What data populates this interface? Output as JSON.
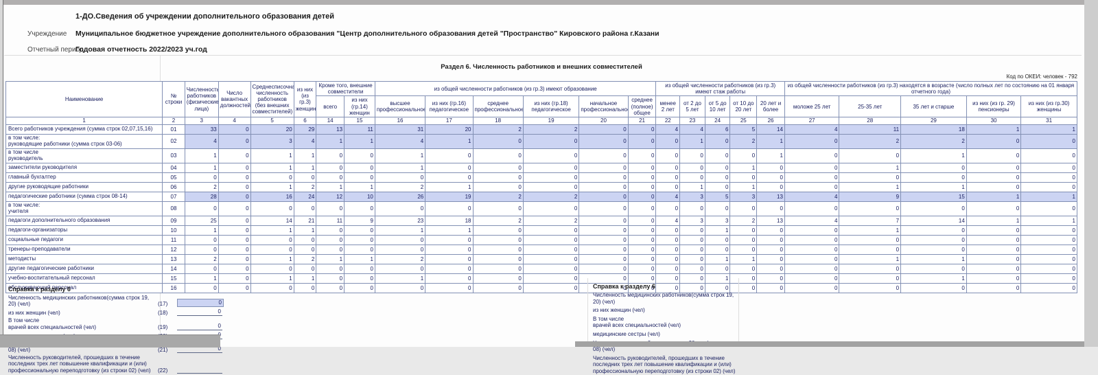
{
  "header": {
    "form_title": "1-ДО.Сведения об учреждении дополнительного образования детей",
    "fields": [
      {
        "label": "Учреждение",
        "value": "Муниципальное бюджетное учреждение дополнительного образования \"Центр дополнительного образования детей \"Пространство\" Кировского района г.Казани"
      },
      {
        "label": "Отчетный период",
        "value": "Годовая отчетность 2022/2023 уч.год"
      }
    ]
  },
  "section": {
    "title": "Раздел 6. Численность работников и внешних совместителей",
    "okei": "Код по ОКЕИ: человек - 792"
  },
  "colors": {
    "row_highlight": "#ccd4f3",
    "table_border": "#8290b4",
    "table_text": "#1b2161"
  },
  "table": {
    "tier1": [
      {
        "label": "Наименование",
        "rowspan": 2
      },
      {
        "label": "№\nстроки",
        "rowspan": 2
      },
      {
        "label": "Численность работников (физические лица)",
        "rowspan": 2
      },
      {
        "label": "Число вакантных должностей",
        "rowspan": 2
      },
      {
        "label": "Среднесписочная численность работников (без внешних совместителей)",
        "rowspan": 2
      },
      {
        "label": "из них (из гр.3) женщины",
        "rowspan": 2
      },
      {
        "label": "Кроме того, внешние совместители",
        "colspan": 2
      },
      {
        "label": "из общей численности работников (из гр.3) имеют образование",
        "colspan": 6
      },
      {
        "label": "из общей численности работников (из гр.3) имеют стаж работы",
        "colspan": 5
      },
      {
        "label": "из общей численности работников (из гр.3) находятся в возрасте (число полных лет по состоянию на 01 января отчетного года)",
        "colspan": 5
      }
    ],
    "tier2": [
      "всего",
      "из них (гр.14) женщин",
      "высшее профессиональное",
      "из них (гр.16) педагогическое",
      "среднее профессиональное",
      "из них (гр.18) педагогическое",
      "начальное профессиональное",
      "среднее (полное) общее",
      "менее 2 лет",
      "от 2 до 5 лет",
      "от 5 до 10 лет",
      "от 10 до 20 лет",
      "20 лет и более",
      "моложе 25 лет",
      "25-35 лет",
      "35 лет и старше",
      "из них (из гр. 29) пенсионеры",
      "из них (из гр.30) женщины"
    ],
    "col_numbers": [
      "1",
      "2",
      "3",
      "4",
      "5",
      "6",
      "14",
      "15",
      "16",
      "17",
      "18",
      "19",
      "20",
      "21",
      "22",
      "23",
      "24",
      "25",
      "26",
      "27",
      "28",
      "29",
      "30",
      "31"
    ],
    "rows": [
      {
        "name": "Всего работников учреждения (сумма строк 02,07,15,16)",
        "code": "01",
        "highlight": true,
        "values": [
          33,
          0,
          20,
          29,
          13,
          11,
          31,
          20,
          2,
          2,
          0,
          0,
          4,
          4,
          6,
          5,
          14,
          4,
          11,
          18,
          1,
          1
        ]
      },
      {
        "name": "в том числе:\nруководящие работники (сумма строк 03-06)",
        "code": "02",
        "highlight": true,
        "values": [
          4,
          0,
          3,
          4,
          1,
          1,
          4,
          1,
          0,
          0,
          0,
          0,
          0,
          1,
          0,
          2,
          1,
          0,
          2,
          2,
          0,
          0
        ]
      },
      {
        "name": "в том числе\nруководитель",
        "code": "03",
        "highlight": false,
        "values": [
          1,
          0,
          1,
          1,
          0,
          0,
          1,
          0,
          0,
          0,
          0,
          0,
          0,
          0,
          0,
          0,
          1,
          0,
          0,
          1,
          0,
          0
        ]
      },
      {
        "name": "заместители руководителя",
        "code": "04",
        "highlight": false,
        "values": [
          1,
          0,
          1,
          1,
          0,
          0,
          1,
          0,
          0,
          0,
          0,
          0,
          0,
          0,
          0,
          1,
          0,
          0,
          1,
          0,
          0,
          0
        ]
      },
      {
        "name": "главный бухгалтер",
        "code": "05",
        "highlight": false,
        "values": [
          0,
          0,
          0,
          0,
          0,
          0,
          0,
          0,
          0,
          0,
          0,
          0,
          0,
          0,
          0,
          0,
          0,
          0,
          0,
          0,
          0,
          0
        ]
      },
      {
        "name": "другие руководящие работники",
        "code": "06",
        "highlight": false,
        "values": [
          2,
          0,
          1,
          2,
          1,
          1,
          2,
          1,
          0,
          0,
          0,
          0,
          0,
          1,
          0,
          1,
          0,
          0,
          1,
          1,
          0,
          0
        ]
      },
      {
        "name": "педагогические работники (сумма строк 08-14)",
        "code": "07",
        "highlight": true,
        "values": [
          28,
          0,
          16,
          24,
          12,
          10,
          26,
          19,
          2,
          2,
          0,
          0,
          4,
          3,
          5,
          3,
          13,
          4,
          9,
          15,
          1,
          1
        ]
      },
      {
        "name": "в том числе:\nучителя",
        "code": "08",
        "highlight": false,
        "values": [
          0,
          0,
          0,
          0,
          0,
          0,
          0,
          0,
          0,
          0,
          0,
          0,
          0,
          0,
          0,
          0,
          0,
          0,
          0,
          0,
          0,
          0
        ]
      },
      {
        "name": "педагоги дополнительного образования",
        "code": "09",
        "highlight": false,
        "values": [
          25,
          0,
          14,
          21,
          11,
          9,
          23,
          18,
          2,
          2,
          0,
          0,
          4,
          3,
          3,
          2,
          13,
          4,
          7,
          14,
          1,
          1
        ]
      },
      {
        "name": "педагоги-организаторы",
        "code": "10",
        "highlight": false,
        "values": [
          1,
          0,
          1,
          1,
          0,
          0,
          1,
          1,
          0,
          0,
          0,
          0,
          0,
          0,
          1,
          0,
          0,
          0,
          1,
          0,
          0,
          0
        ]
      },
      {
        "name": "социальные педагоги",
        "code": "11",
        "highlight": false,
        "values": [
          0,
          0,
          0,
          0,
          0,
          0,
          0,
          0,
          0,
          0,
          0,
          0,
          0,
          0,
          0,
          0,
          0,
          0,
          0,
          0,
          0,
          0
        ]
      },
      {
        "name": "тренеры-преподаватели",
        "code": "12",
        "highlight": false,
        "values": [
          0,
          0,
          0,
          0,
          0,
          0,
          0,
          0,
          0,
          0,
          0,
          0,
          0,
          0,
          0,
          0,
          0,
          0,
          0,
          0,
          0,
          0
        ]
      },
      {
        "name": "методисты",
        "code": "13",
        "highlight": false,
        "values": [
          2,
          0,
          1,
          2,
          1,
          1,
          2,
          0,
          0,
          0,
          0,
          0,
          0,
          0,
          1,
          1,
          0,
          0,
          1,
          1,
          0,
          0
        ]
      },
      {
        "name": "другие педагогические работники",
        "code": "14",
        "highlight": false,
        "values": [
          0,
          0,
          0,
          0,
          0,
          0,
          0,
          0,
          0,
          0,
          0,
          0,
          0,
          0,
          0,
          0,
          0,
          0,
          0,
          0,
          0,
          0
        ]
      },
      {
        "name": "учебно-воспитательный персонал",
        "code": "15",
        "highlight": false,
        "values": [
          1,
          0,
          1,
          1,
          0,
          0,
          1,
          0,
          0,
          0,
          0,
          0,
          0,
          0,
          1,
          0,
          0,
          0,
          0,
          1,
          0,
          0
        ]
      },
      {
        "name": "обслуживающий персонал",
        "code": "16",
        "highlight": false,
        "values": [
          0,
          0,
          0,
          0,
          0,
          0,
          0,
          0,
          0,
          0,
          0,
          0,
          0,
          0,
          0,
          0,
          0,
          0,
          0,
          0,
          0,
          0
        ]
      }
    ]
  },
  "spravka_left": {
    "title": "Справка к разделу 6",
    "items": [
      {
        "label": "Численность медицинских работников(сумма строк 19, 20) (чел)",
        "code": "(17)",
        "value": "0",
        "highlight": true
      },
      {
        "label": "из них женщин (чел)",
        "code": "(18)",
        "value": "0",
        "highlight": false
      },
      {
        "label": "В том числе\nврачей всех специальностей (чел)",
        "code": "(19)",
        "value": "0",
        "highlight": false
      },
      {
        "label": "медицинские сестры (чел)",
        "code": "(20)",
        "value": "0",
        "highlight": false
      },
      {
        "label": "Численность учителей в возрасте до 30 лет (из строки 08) (чел)",
        "code": "(21)",
        "value": "0",
        "highlight": false
      },
      {
        "label": "Численность руководителей, прошедших в течение последних трех лет повышение квалификации и (или) профессиональную переподготовку (из строки 02) (чел)",
        "code": "(22)",
        "value": "",
        "highlight": false
      }
    ]
  },
  "spravka_right": {
    "title": "Справка к разделу 6",
    "items": [
      "Численность медицинских работников(сумма строк 19, 20) (чел)",
      "из них женщин (чел)",
      "В том числе\nврачей всех специальностей (чел)",
      "медицинские сестры (чел)",
      "Численность учителей в возрасте до 30 лет (из строки 08) (чел)",
      "Численность руководителей, прошедших в течение последних трех лет повышение квалификации и (или) профессиональную переподготовку (из строки 02) (чел)"
    ]
  }
}
